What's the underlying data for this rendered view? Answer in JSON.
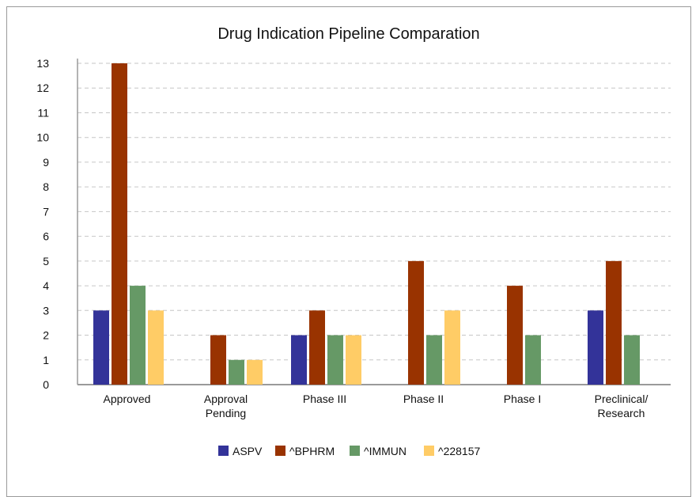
{
  "chart_data": {
    "type": "bar",
    "title": "Drug Indication Pipeline Comparation",
    "xlabel": "",
    "ylabel": "",
    "categories": [
      "Approved",
      "Approval\nPending",
      "Phase III",
      "Phase II",
      "Phase I",
      "Preclinical/\nResearch"
    ],
    "series": [
      {
        "name": "ASPV",
        "color": "#333399",
        "values": [
          3,
          0,
          2,
          0,
          0,
          3
        ]
      },
      {
        "name": "^BPHRM",
        "color": "#993300",
        "values": [
          13,
          2,
          3,
          5,
          4,
          5
        ]
      },
      {
        "name": "^IMMUN",
        "color": "#669966",
        "values": [
          4,
          1,
          2,
          2,
          2,
          2
        ]
      },
      {
        "name": "^228157",
        "color": "#ffcc66",
        "values": [
          3,
          1,
          2,
          3,
          0,
          0
        ]
      }
    ],
    "ylim": [
      0,
      13
    ],
    "yticks": [
      0,
      1,
      2,
      3,
      4,
      5,
      6,
      7,
      8,
      9,
      10,
      11,
      12,
      13
    ],
    "grid": true,
    "legend": "bottom-center"
  }
}
